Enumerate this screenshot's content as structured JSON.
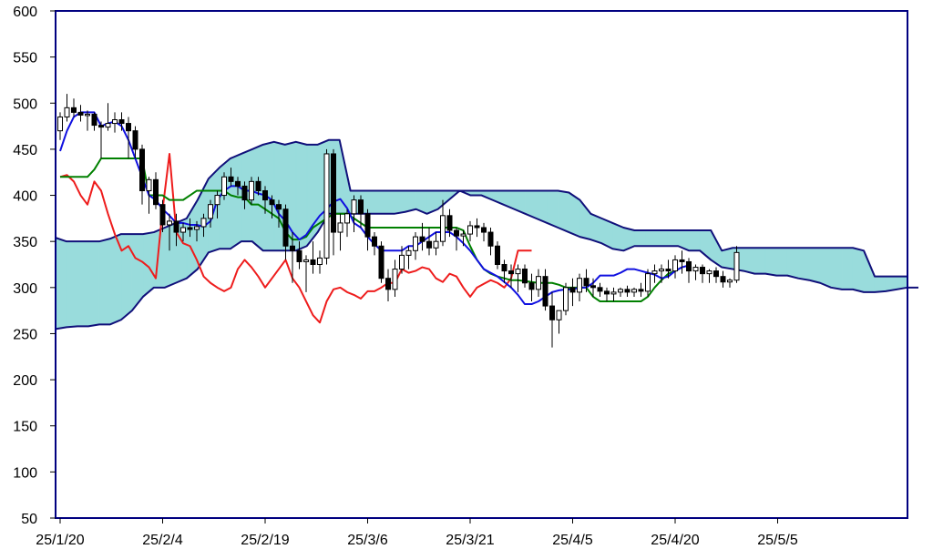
{
  "chart_data": {
    "type": "candlestick",
    "indicator": "ichimoku",
    "ylim": [
      50,
      600
    ],
    "yticks": [
      50,
      100,
      150,
      200,
      250,
      300,
      350,
      400,
      450,
      500,
      550,
      600
    ],
    "xticks": [
      "25/1/20",
      "25/2/4",
      "25/2/19",
      "25/3/6",
      "25/3/21",
      "25/4/5",
      "25/4/20",
      "25/5/5"
    ],
    "colors": {
      "frame": "#000080",
      "tenkan": "#1010e0",
      "kijun": "#008000",
      "chikou": "#ee1c1c",
      "span": "#10107a",
      "cloud_bull": "#99dcdc",
      "cloud_bear": "#fff6c0",
      "candle_up": "#ffffff",
      "candle_down": "#000000"
    },
    "candles": [
      [
        470,
        490,
        460,
        485
      ],
      [
        485,
        510,
        480,
        495
      ],
      [
        495,
        505,
        485,
        490
      ],
      [
        490,
        498,
        480,
        487
      ],
      [
        487,
        492,
        470,
        488
      ],
      [
        488,
        490,
        470,
        476
      ],
      [
        476,
        480,
        440,
        474
      ],
      [
        474,
        500,
        470,
        478
      ],
      [
        478,
        490,
        468,
        482
      ],
      [
        482,
        490,
        470,
        478
      ],
      [
        478,
        485,
        440,
        470
      ],
      [
        470,
        475,
        440,
        450
      ],
      [
        450,
        455,
        390,
        405
      ],
      [
        405,
        420,
        380,
        417
      ],
      [
        417,
        425,
        385,
        390
      ],
      [
        390,
        395,
        360,
        368
      ],
      [
        368,
        380,
        340,
        372
      ],
      [
        372,
        380,
        345,
        360
      ],
      [
        360,
        370,
        350,
        365
      ],
      [
        365,
        375,
        355,
        363
      ],
      [
        363,
        372,
        350,
        366
      ],
      [
        366,
        380,
        355,
        375
      ],
      [
        375,
        395,
        365,
        390
      ],
      [
        390,
        405,
        375,
        400
      ],
      [
        400,
        425,
        395,
        420
      ],
      [
        420,
        430,
        410,
        415
      ],
      [
        415,
        420,
        400,
        410
      ],
      [
        410,
        415,
        385,
        395
      ],
      [
        395,
        420,
        390,
        415
      ],
      [
        415,
        420,
        400,
        405
      ],
      [
        405,
        410,
        380,
        395
      ],
      [
        395,
        400,
        375,
        390
      ],
      [
        390,
        395,
        365,
        385
      ],
      [
        385,
        390,
        330,
        345
      ],
      [
        345,
        360,
        305,
        340
      ],
      [
        340,
        350,
        320,
        328
      ],
      [
        328,
        335,
        295,
        330
      ],
      [
        330,
        350,
        315,
        325
      ],
      [
        325,
        340,
        315,
        332
      ],
      [
        332,
        450,
        325,
        445
      ],
      [
        445,
        450,
        335,
        360
      ],
      [
        360,
        380,
        340,
        370
      ],
      [
        370,
        385,
        355,
        380
      ],
      [
        380,
        400,
        360,
        395
      ],
      [
        395,
        400,
        365,
        380
      ],
      [
        380,
        385,
        340,
        355
      ],
      [
        355,
        360,
        335,
        345
      ],
      [
        345,
        350,
        305,
        310
      ],
      [
        310,
        320,
        285,
        298
      ],
      [
        298,
        330,
        290,
        320
      ],
      [
        320,
        345,
        315,
        335
      ],
      [
        335,
        345,
        320,
        340
      ],
      [
        340,
        360,
        330,
        355
      ],
      [
        355,
        370,
        340,
        350
      ],
      [
        350,
        365,
        335,
        343
      ],
      [
        343,
        360,
        335,
        350
      ],
      [
        350,
        395,
        345,
        378
      ],
      [
        378,
        385,
        355,
        362
      ],
      [
        362,
        365,
        340,
        356
      ],
      [
        356,
        362,
        345,
        358
      ],
      [
        358,
        372,
        350,
        367
      ],
      [
        367,
        375,
        355,
        365
      ],
      [
        365,
        370,
        350,
        360
      ],
      [
        360,
        365,
        335,
        345
      ],
      [
        345,
        350,
        320,
        325
      ],
      [
        325,
        330,
        305,
        318
      ],
      [
        318,
        325,
        300,
        315
      ],
      [
        315,
        325,
        295,
        320
      ],
      [
        320,
        325,
        300,
        305
      ],
      [
        305,
        315,
        285,
        298
      ],
      [
        298,
        320,
        290,
        312
      ],
      [
        312,
        320,
        275,
        280
      ],
      [
        280,
        295,
        235,
        265
      ],
      [
        265,
        275,
        250,
        275
      ],
      [
        275,
        305,
        270,
        300
      ],
      [
        300,
        310,
        280,
        295
      ],
      [
        295,
        315,
        285,
        310
      ],
      [
        310,
        320,
        295,
        302
      ],
      [
        302,
        310,
        290,
        300
      ],
      [
        300,
        305,
        290,
        296
      ],
      [
        296,
        300,
        285,
        293
      ],
      [
        293,
        300,
        285,
        295
      ],
      [
        295,
        300,
        290,
        298
      ],
      [
        298,
        302,
        290,
        295
      ],
      [
        295,
        300,
        290,
        298
      ],
      [
        298,
        305,
        290,
        296
      ],
      [
        296,
        320,
        290,
        315
      ],
      [
        315,
        325,
        305,
        318
      ],
      [
        318,
        325,
        305,
        320
      ],
      [
        320,
        330,
        310,
        318
      ],
      [
        318,
        335,
        310,
        330
      ],
      [
        330,
        340,
        315,
        328
      ],
      [
        328,
        332,
        305,
        318
      ],
      [
        318,
        325,
        308,
        322
      ],
      [
        322,
        325,
        305,
        315
      ],
      [
        315,
        320,
        305,
        318
      ],
      [
        318,
        322,
        305,
        312
      ],
      [
        312,
        318,
        300,
        306
      ],
      [
        306,
        310,
        300,
        308
      ],
      [
        308,
        345,
        305,
        338
      ]
    ],
    "tenkan": [
      448,
      470,
      485,
      490,
      490,
      490,
      475,
      478,
      480,
      475,
      460,
      440,
      420,
      400,
      395,
      385,
      378,
      370,
      370,
      368,
      368,
      366,
      372,
      395,
      405,
      410,
      410,
      405,
      405,
      402,
      400,
      395,
      380,
      372,
      360,
      352,
      357,
      368,
      378,
      385,
      393,
      396,
      386,
      370,
      365,
      355,
      347,
      340,
      340,
      340,
      340,
      345,
      345,
      350,
      355,
      360,
      360,
      360,
      355,
      348,
      340,
      330,
      320,
      316,
      312,
      306,
      300,
      292,
      282,
      282,
      285,
      290,
      295,
      297,
      298,
      298,
      300,
      300,
      305,
      313,
      313,
      313,
      316,
      320,
      320,
      318,
      316,
      314,
      310,
      312,
      318,
      322,
      324
    ],
    "kijun": [
      420,
      420,
      420,
      420,
      420,
      428,
      440,
      440,
      440,
      440,
      440,
      440,
      440,
      400,
      400,
      400,
      395,
      395,
      395,
      400,
      405,
      405,
      405,
      405,
      405,
      400,
      398,
      398,
      390,
      390,
      385,
      380,
      375,
      360,
      352,
      352,
      355,
      365,
      370,
      375,
      380,
      380,
      380,
      375,
      370,
      365,
      365,
      365,
      365,
      365,
      365,
      365,
      365,
      365,
      365,
      365,
      365,
      365,
      365,
      362,
      345,
      330,
      320,
      315,
      312,
      310,
      308,
      308,
      307,
      306,
      305,
      305,
      305,
      303,
      300,
      300,
      300,
      300,
      290,
      285,
      285,
      285,
      285,
      285,
      285,
      285,
      290,
      300,
      308,
      315,
      318,
      322
    ],
    "chikou": [
      420,
      422,
      415,
      400,
      390,
      415,
      405,
      380,
      358,
      340,
      345,
      332,
      328,
      322,
      310,
      385,
      445,
      360,
      348,
      345,
      330,
      312,
      305,
      300,
      296,
      300,
      320,
      330,
      322,
      312,
      300,
      310,
      320,
      330,
      310,
      300,
      285,
      270,
      262,
      285,
      298,
      300,
      295,
      292,
      288,
      296,
      296,
      300,
      305,
      305,
      320,
      316,
      318,
      322,
      320,
      310,
      306,
      315,
      312,
      300,
      290,
      300,
      304,
      308,
      305,
      300,
      310,
      340,
      340,
      340
    ],
    "spanA": [
      354,
      350,
      350,
      350,
      350,
      353,
      358,
      358,
      358,
      360,
      365,
      370,
      375,
      395,
      418,
      430,
      440,
      445,
      450,
      455,
      458,
      455,
      458,
      455,
      455,
      460,
      460,
      405,
      405,
      405,
      405,
      405,
      405,
      405,
      405,
      405,
      405,
      405,
      405,
      405,
      405,
      405,
      405,
      405,
      405,
      405,
      405,
      403,
      395,
      380,
      375,
      370,
      365,
      362,
      362,
      362,
      362,
      362,
      362,
      362,
      362,
      340,
      343,
      343,
      343,
      343,
      343,
      343,
      343,
      343,
      343,
      343,
      343,
      343,
      340,
      312,
      312,
      312,
      312
    ],
    "spanB": [
      255,
      257,
      258,
      258,
      260,
      260,
      265,
      275,
      290,
      300,
      300,
      305,
      310,
      320,
      338,
      342,
      342,
      350,
      350,
      340,
      340,
      340,
      340,
      345,
      360,
      380,
      380,
      380,
      380,
      380,
      380,
      380,
      382,
      385,
      380,
      385,
      395,
      405,
      400,
      400,
      395,
      390,
      385,
      380,
      375,
      370,
      365,
      360,
      355,
      352,
      348,
      342,
      340,
      345,
      345,
      345,
      345,
      345,
      340,
      340,
      330,
      322,
      320,
      318,
      315,
      315,
      313,
      313,
      310,
      308,
      305,
      300,
      298,
      298,
      295,
      295,
      296,
      298,
      300,
      300
    ]
  }
}
